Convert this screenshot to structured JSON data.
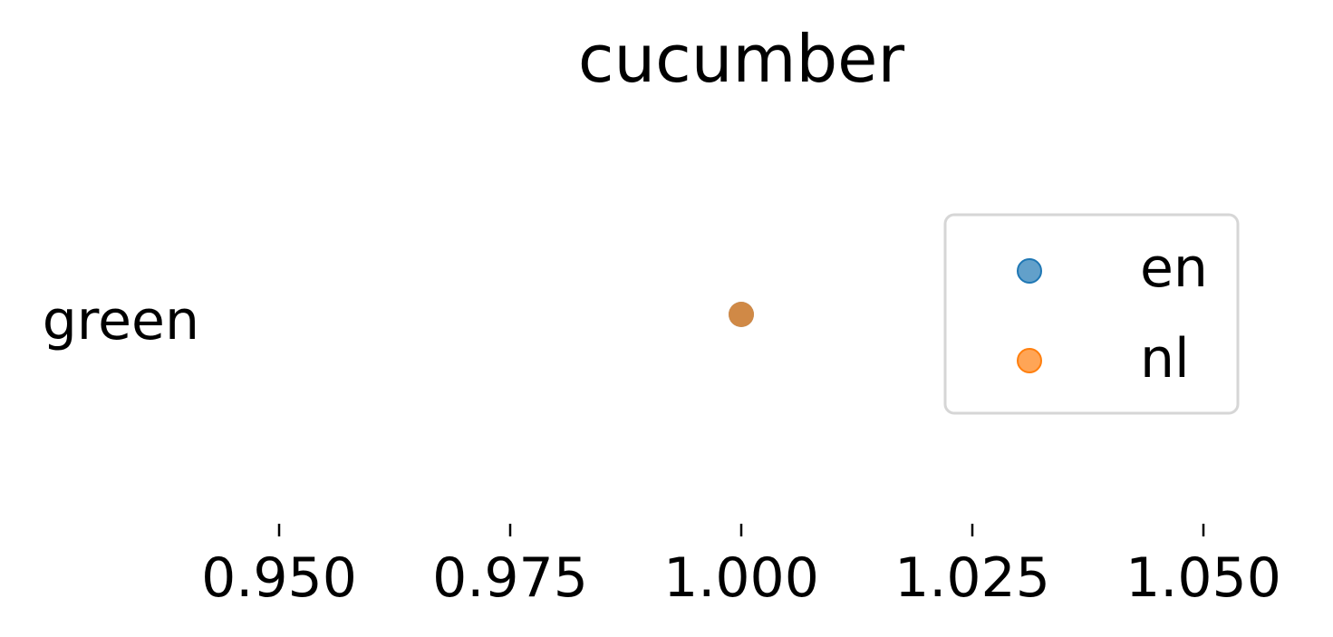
{
  "chart_data": {
    "type": "scatter",
    "title": "cucumber",
    "xlabel": "",
    "ylabel": "",
    "categories": [
      "green"
    ],
    "xlim": [
      0.94,
      1.06
    ],
    "xticks": [
      0.95,
      0.975,
      1.0,
      1.025,
      1.05
    ],
    "xtick_labels": [
      "0.950",
      "0.975",
      "1.000",
      "1.025",
      "1.050"
    ],
    "grid": false,
    "legend": {
      "placement": "right",
      "entries": [
        "en",
        "nl"
      ]
    },
    "series": [
      {
        "name": "en",
        "color": "#1f77b4",
        "points": [
          {
            "y": "green",
            "x": 1.0
          }
        ]
      },
      {
        "name": "nl",
        "color": "#ff7f0e",
        "points": [
          {
            "y": "green",
            "x": 1.0
          }
        ]
      }
    ]
  }
}
